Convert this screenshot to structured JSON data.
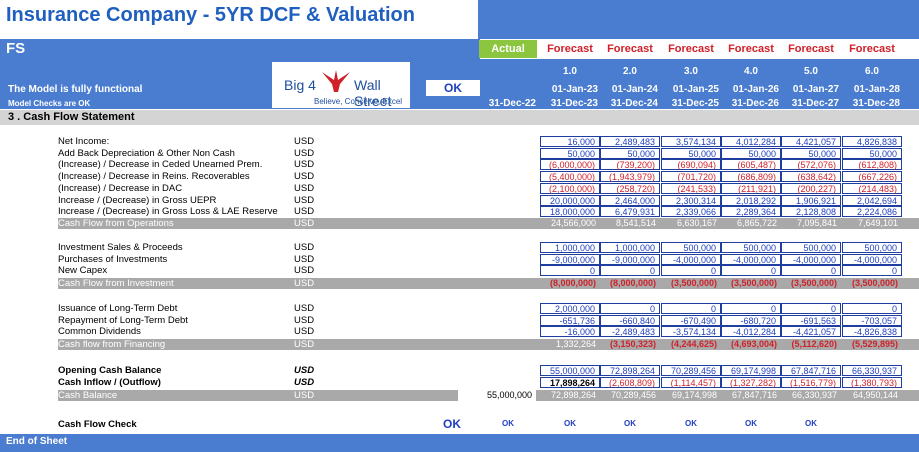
{
  "title": "Insurance Company - 5YR DCF & Valuation",
  "sheet_name": "FS",
  "model_status": "The Model is fully functional",
  "model_checks": "Model Checks are OK",
  "ok_label": "OK",
  "logo": {
    "left": "Big 4",
    "right": "Wall Street",
    "tagline": "Believe, Conceive, Excel"
  },
  "columns": {
    "types": [
      "Actual",
      "Forecast",
      "Forecast",
      "Forecast",
      "Forecast",
      "Forecast",
      "Forecast"
    ],
    "periods": [
      "",
      "1.0",
      "2.0",
      "3.0",
      "4.0",
      "5.0",
      "6.0"
    ],
    "starts": [
      "",
      "01-Jan-23",
      "01-Jan-24",
      "01-Jan-25",
      "01-Jan-26",
      "01-Jan-27",
      "01-Jan-28"
    ],
    "ends": [
      "31-Dec-22",
      "31-Dec-23",
      "31-Dec-24",
      "31-Dec-25",
      "31-Dec-26",
      "31-Dec-27",
      "31-Dec-28"
    ]
  },
  "section_title": "3 .  Cash Flow Statement",
  "operations": [
    {
      "label": "Net Income:",
      "unit": "USD",
      "values": [
        "16,000",
        "2,489,483",
        "3,574,134",
        "4,012,284",
        "4,421,057",
        "4,826,838"
      ]
    },
    {
      "label": "Add Back Depreciation & Other Non Cash",
      "unit": "USD",
      "values": [
        "50,000",
        "50,000",
        "50,000",
        "50,000",
        "50,000",
        "50,000"
      ]
    },
    {
      "label": "(Increase) / Decrease in Ceded Unearned Prem.",
      "unit": "USD",
      "values": [
        "(6,000,000)",
        "(739,200)",
        "(690,094)",
        "(605,487)",
        "(572,076)",
        "(612,808)"
      ]
    },
    {
      "label": "(Increase) / Decrease in Reins. Recoverables",
      "unit": "USD",
      "values": [
        "(5,400,000)",
        "(1,943,979)",
        "(701,720)",
        "(686,809)",
        "(638,642)",
        "(667,226)"
      ]
    },
    {
      "label": "(Increase) / Decrease in DAC",
      "unit": "USD",
      "values": [
        "(2,100,000)",
        "(258,720)",
        "(241,533)",
        "(211,921)",
        "(200,227)",
        "(214,483)"
      ]
    },
    {
      "label": "Increase / (Decrease) in Gross UEPR",
      "unit": "USD",
      "values": [
        "20,000,000",
        "2,464,000",
        "2,300,314",
        "2,018,292",
        "1,906,921",
        "2,042,694"
      ]
    },
    {
      "label": "Increase / (Decrease) in Gross Loss & LAE Reserve",
      "unit": "USD",
      "values": [
        "18,000,000",
        "6,479,931",
        "2,339,066",
        "2,289,364",
        "2,128,808",
        "2,224,086"
      ]
    }
  ],
  "operations_total": {
    "label": "Cash Flow from Operations",
    "unit": "USD",
    "values": [
      "24,566,000",
      "8,541,514",
      "6,630,167",
      "6,865,722",
      "7,095,841",
      "7,649,101"
    ]
  },
  "investment": [
    {
      "label": "Investment Sales & Proceeds",
      "unit": "USD",
      "values": [
        "1,000,000",
        "1,000,000",
        "500,000",
        "500,000",
        "500,000",
        "500,000"
      ]
    },
    {
      "label": "Purchases of Investments",
      "unit": "USD",
      "values": [
        "-9,000,000",
        "-9,000,000",
        "-4,000,000",
        "-4,000,000",
        "-4,000,000",
        "-4,000,000"
      ]
    },
    {
      "label": "New Capex",
      "unit": "USD",
      "values": [
        "0",
        "0",
        "0",
        "0",
        "0",
        "0"
      ]
    }
  ],
  "investment_total": {
    "label": "Cash Flow from Investment",
    "unit": "USD",
    "values": [
      "(8,000,000)",
      "(8,000,000)",
      "(3,500,000)",
      "(3,500,000)",
      "(3,500,000)",
      "(3,500,000)"
    ]
  },
  "financing": [
    {
      "label": "Issuance of Long-Term Debt",
      "unit": "USD",
      "values": [
        "2,000,000",
        "0",
        "0",
        "0",
        "0",
        "0"
      ]
    },
    {
      "label": "Repayment of Long-Term Debt",
      "unit": "USD",
      "values": [
        "-651,736",
        "-660,840",
        "-670,490",
        "-680,720",
        "-691,563",
        "-703,057"
      ]
    },
    {
      "label": "Common Dividends",
      "unit": "USD",
      "values": [
        "-16,000",
        "-2,489,483",
        "-3,574,134",
        "-4,012,284",
        "-4,421,057",
        "-4,826,838"
      ]
    }
  ],
  "financing_total": {
    "label": "Cash flow from Financing",
    "unit": "USD",
    "values": [
      "1,332,264",
      "(3,150,323)",
      "(4,244,625)",
      "(4,693,004)",
      "(5,112,620)",
      "(5,529,895)"
    ]
  },
  "balance": [
    {
      "label": "Opening Cash Balance",
      "unit": "USD",
      "values": [
        "55,000,000",
        "72,898,264",
        "70,289,456",
        "69,174,998",
        "67,847,716",
        "66,330,937"
      ]
    },
    {
      "label": "Cash Inflow / (Outflow)",
      "unit": "USD",
      "values": [
        "17,898,264",
        "(2,608,809)",
        "(1,114,457)",
        "(1,327,282)",
        "(1,516,779)",
        "(1,380,793)"
      ]
    }
  ],
  "balance_total": {
    "label": "Cash Balance",
    "unit": "USD",
    "actual": "55,000,000",
    "values": [
      "72,898,264",
      "70,289,456",
      "69,174,998",
      "67,847,716",
      "66,330,937",
      "64,950,144"
    ]
  },
  "check": {
    "label": "Cash Flow Check",
    "main": "OK",
    "values": [
      "OK",
      "OK",
      "OK",
      "OK",
      "OK",
      "OK"
    ]
  },
  "end_label": "End of Sheet",
  "colors": {
    "blue_band": "#4a7cd0",
    "actual": "#8cc63f",
    "forecast_text": "#d0202a",
    "negative": "#d0202a",
    "input": "#1f3fc0",
    "total_bar": "#a9a9a9"
  }
}
